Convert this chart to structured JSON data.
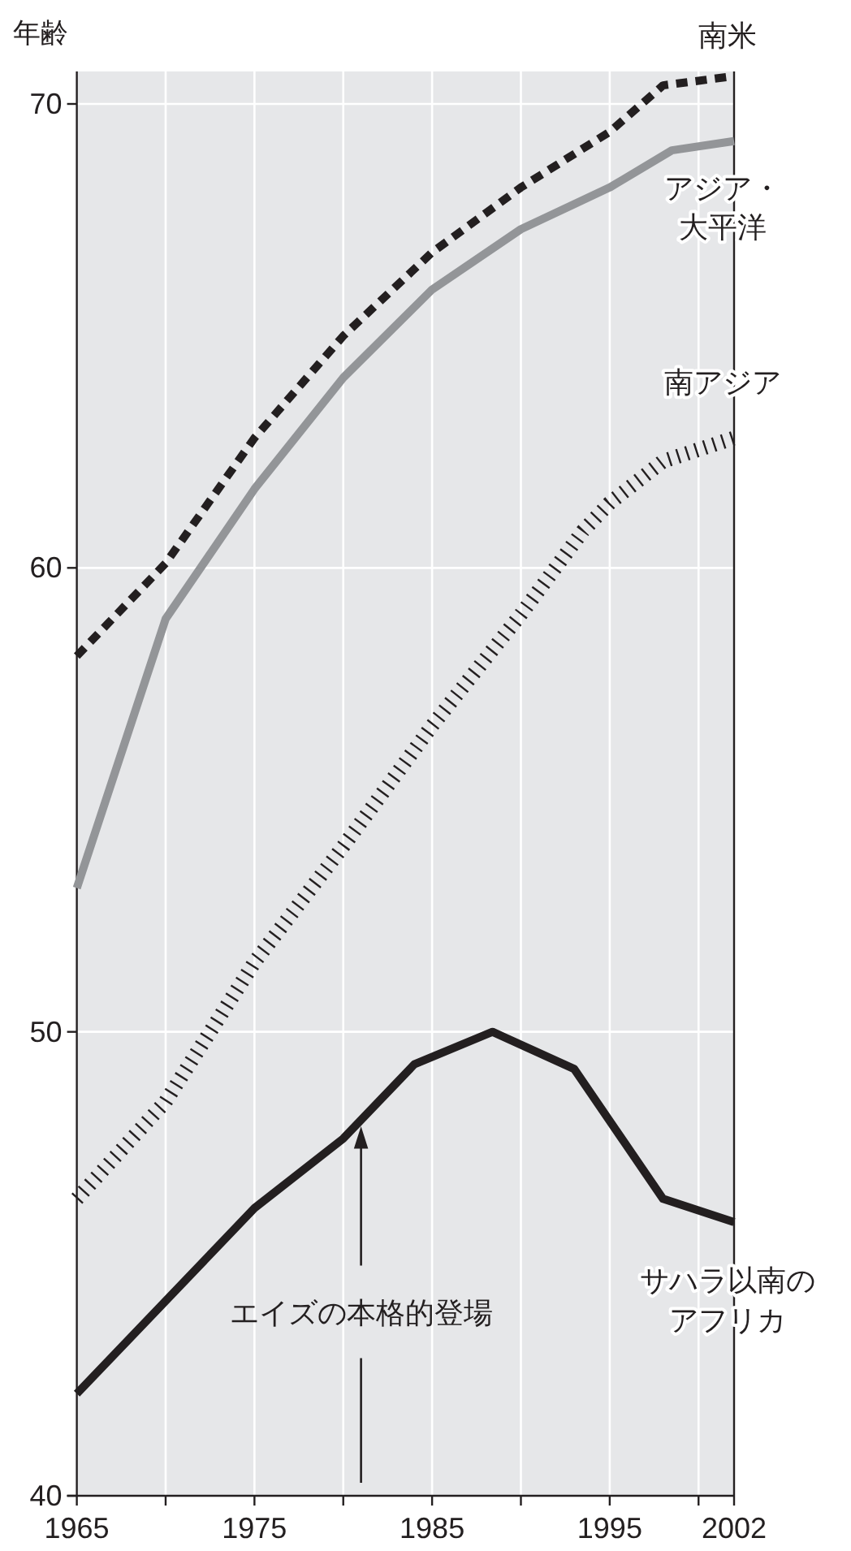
{
  "chart_data": {
    "type": "line",
    "ylabel": "年齢",
    "xlim": [
      1965,
      2002
    ],
    "ylim": [
      40,
      70.7
    ],
    "xticks": [
      1965,
      {
        "value": 1970,
        "label": null
      },
      1975,
      {
        "value": 1980,
        "label": null
      },
      1985,
      {
        "value": 1990,
        "label": null
      },
      1995,
      {
        "value": 2000,
        "label": null
      },
      2002
    ],
    "yticks": [
      40,
      50,
      60,
      70
    ],
    "grid": true,
    "legend": false,
    "ref_lines": [
      {
        "axis": "x",
        "value": 1981,
        "label": "エイズの本格的登場",
        "color": "#231f20"
      }
    ],
    "series": [
      {
        "name": "南米",
        "color": "#231f20",
        "line_style": "dashed",
        "x": [
          1965,
          1970,
          1975,
          1980,
          1985,
          1990,
          1995,
          1998,
          2002
        ],
        "values": [
          58.1,
          60.1,
          62.8,
          65.0,
          66.8,
          68.2,
          69.4,
          70.4,
          70.6
        ]
      },
      {
        "name": "アジア・大平洋",
        "color": "#939598",
        "line_style": "solid",
        "x": [
          1965,
          1970,
          1975,
          1980,
          1985,
          1990,
          1995,
          1998.5,
          2002
        ],
        "values": [
          53.1,
          58.9,
          61.7,
          64.1,
          66.0,
          67.3,
          68.2,
          69.0,
          69.2
        ]
      },
      {
        "name": "南アジア",
        "color": "#231f20",
        "line_style": "dotted",
        "x": [
          1965,
          1970,
          1975,
          1980,
          1985,
          1990,
          1993.5,
          1995,
          1998,
          2002
        ],
        "values": [
          46.4,
          48.5,
          51.5,
          54.0,
          56.6,
          59.0,
          60.8,
          61.4,
          62.3,
          62.8
        ]
      },
      {
        "name": "サハラ以南のアフリカ",
        "color": "#231f20",
        "line_style": "solid",
        "x": [
          1965,
          1975,
          1980,
          1984,
          1988.4,
          1993,
          1998,
          2002
        ],
        "values": [
          42.2,
          46.2,
          47.7,
          49.3,
          50.0,
          49.2,
          46.4,
          45.9
        ]
      }
    ]
  }
}
